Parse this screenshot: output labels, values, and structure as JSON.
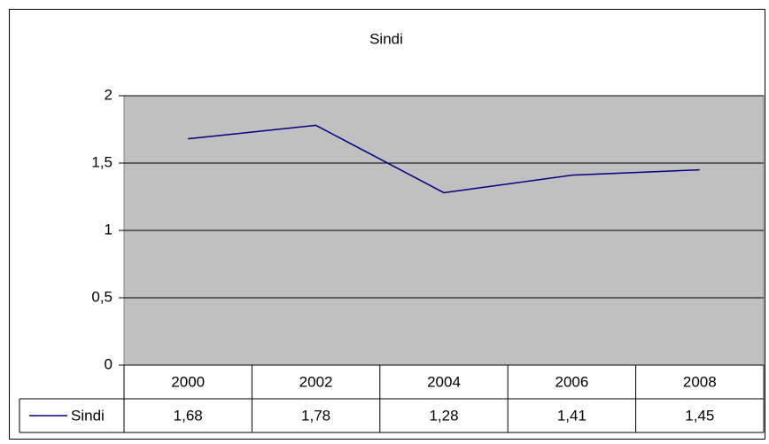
{
  "chart_data": {
    "type": "line",
    "title": "Sindi",
    "categories": [
      "2000",
      "2002",
      "2004",
      "2006",
      "2008"
    ],
    "series": [
      {
        "name": "Sindi",
        "color": "#000080",
        "values": [
          1.68,
          1.78,
          1.28,
          1.41,
          1.45
        ],
        "value_labels": [
          "1,68",
          "1,78",
          "1,28",
          "1,41",
          "1,45"
        ]
      }
    ],
    "ylim": [
      0,
      2
    ],
    "yticks": [
      0,
      {
        "value": 0.5,
        "label": "0,5"
      },
      1,
      {
        "value": 1.5,
        "label": "1,5"
      },
      2
    ],
    "grid": true
  }
}
